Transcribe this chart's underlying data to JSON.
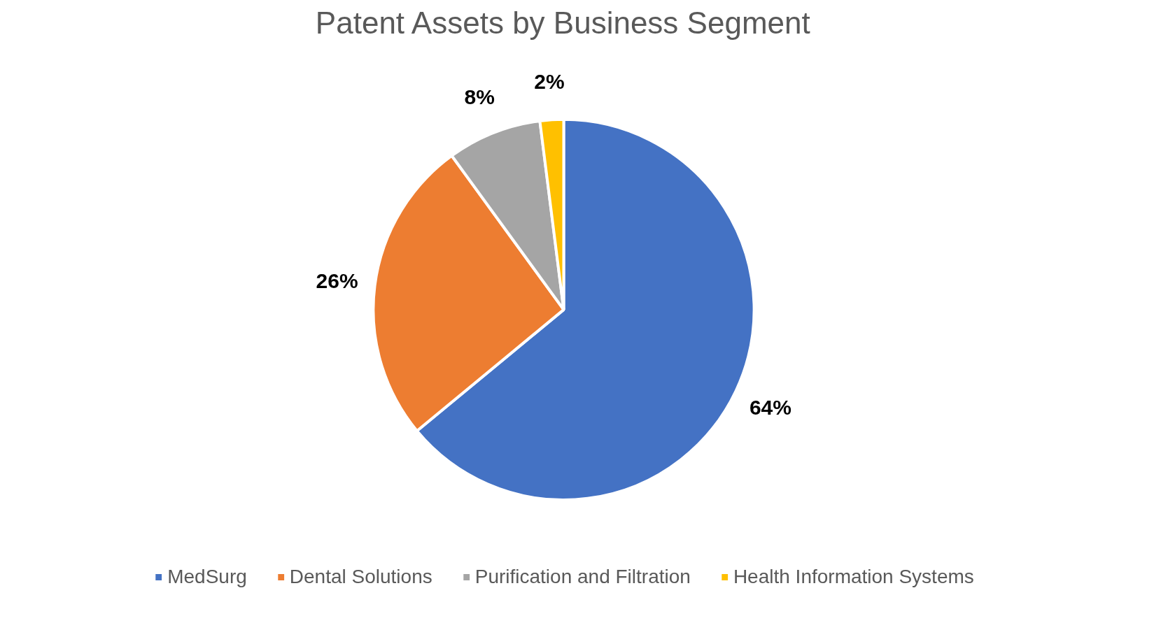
{
  "chart_data": {
    "type": "pie",
    "title": "Patent Assets by Business Segment",
    "categories": [
      "MedSurg",
      "Dental Solutions",
      "Purification and Filtration",
      "Health Information Systems"
    ],
    "values": [
      64,
      26,
      8,
      2
    ],
    "value_labels": [
      "64%",
      "26%",
      "8%",
      "2%"
    ],
    "colors": [
      "#4472c4",
      "#ed7d31",
      "#a5a5a5",
      "#ffc000"
    ],
    "legend": "bottom"
  }
}
